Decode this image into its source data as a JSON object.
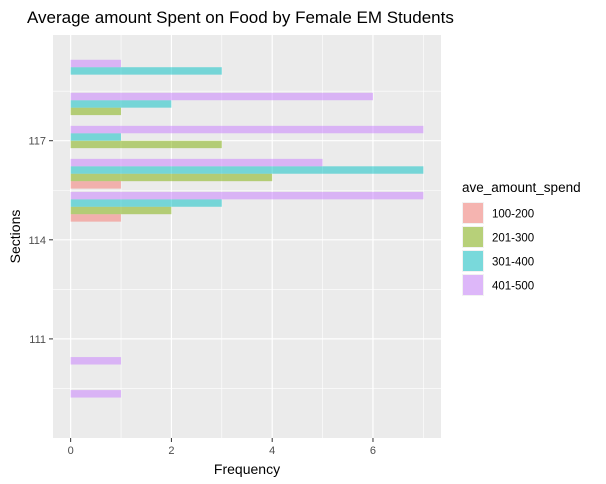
{
  "chart_data": {
    "type": "bar",
    "orientation": "horizontal",
    "title": "Average amount Spent on Food by Female EM Students",
    "xlabel": "Frequency",
    "ylabel": "Sections",
    "xlim": [
      -0.35,
      7.35
    ],
    "xticks": [
      0,
      2,
      4,
      6
    ],
    "ylim": [
      108.0,
      120.2
    ],
    "yticks": [
      111,
      114,
      117
    ],
    "grid": true,
    "bar_alpha": 0.5,
    "legend": {
      "title": "ave_amount_spend",
      "position": "right",
      "entries": [
        "100-200",
        "201-300",
        "301-400",
        "401-500"
      ],
      "colors": {
        "100-200": "#F8766D",
        "201-300": "#7CAE00",
        "301-400": "#00BFC4",
        "401-500": "#C77CFF"
      }
    },
    "bars": [
      {
        "section": 109,
        "group": "401-500",
        "value": 1
      },
      {
        "section": 110,
        "group": "401-500",
        "value": 1
      },
      {
        "section": 115,
        "group": "100-200",
        "value": 1
      },
      {
        "section": 115,
        "group": "201-300",
        "value": 2
      },
      {
        "section": 115,
        "group": "301-400",
        "value": 3
      },
      {
        "section": 115,
        "group": "401-500",
        "value": 7
      },
      {
        "section": 116,
        "group": "100-200",
        "value": 1
      },
      {
        "section": 116,
        "group": "201-300",
        "value": 4
      },
      {
        "section": 116,
        "group": "301-400",
        "value": 7
      },
      {
        "section": 116,
        "group": "401-500",
        "value": 5
      },
      {
        "section": 117,
        "group": "201-300",
        "value": 3
      },
      {
        "section": 117,
        "group": "301-400",
        "value": 1
      },
      {
        "section": 117,
        "group": "401-500",
        "value": 7
      },
      {
        "section": 118,
        "group": "201-300",
        "value": 1
      },
      {
        "section": 118,
        "group": "301-400",
        "value": 2
      },
      {
        "section": 118,
        "group": "401-500",
        "value": 6
      },
      {
        "section": 119,
        "group": "301-400",
        "value": 3
      },
      {
        "section": 119,
        "group": "401-500",
        "value": 1
      }
    ]
  }
}
